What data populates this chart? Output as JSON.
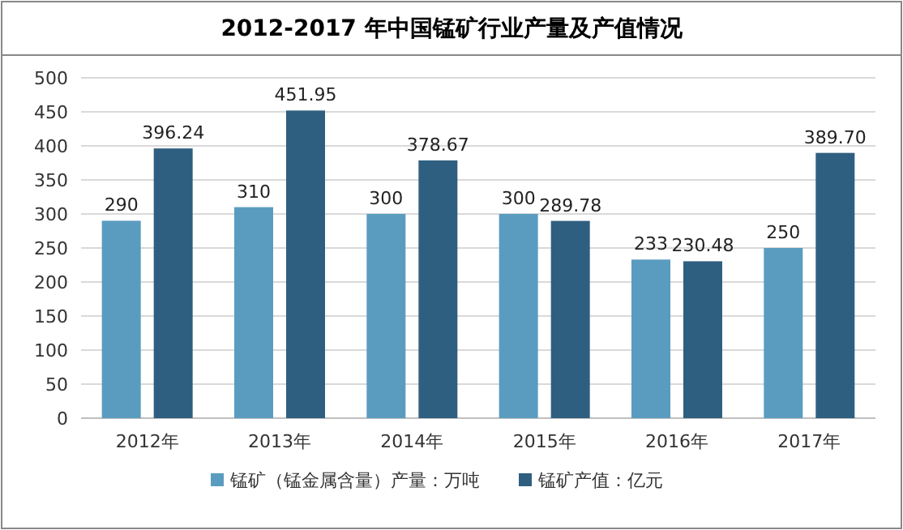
{
  "chart_data": {
    "type": "bar",
    "title": "2012-2017 年中国锰矿行业产量及产值情况",
    "categories": [
      "2012年",
      "2013年",
      "2014年",
      "2015年",
      "2016年",
      "2017年"
    ],
    "series": [
      {
        "name": "锰矿（锰金属含量）产量：万吨",
        "color": "#5a9cc0",
        "values": [
          290,
          310,
          300,
          300,
          233,
          250
        ]
      },
      {
        "name": "锰矿产值：亿元",
        "color": "#2f5f80",
        "values": [
          396.24,
          451.95,
          378.67,
          289.78,
          230.48,
          389.7
        ],
        "value_labels": [
          "396.24",
          "451.95",
          "378.67",
          "289.78",
          "230.48",
          "389.70"
        ]
      }
    ],
    "ylim": [
      0,
      500
    ],
    "yticks": [
      0,
      50,
      100,
      150,
      200,
      250,
      300,
      350,
      400,
      450,
      500
    ],
    "grid": "y",
    "legend": "bottom",
    "data_labels": true
  }
}
